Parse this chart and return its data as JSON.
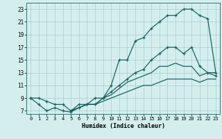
{
  "xlabel": "Humidex (Indice chaleur)",
  "bg_color": "#d4eeee",
  "grid_color": "#a8cccc",
  "line_color": "#1a6060",
  "xlim": [
    -0.5,
    23.5
  ],
  "ylim": [
    6.5,
    24.0
  ],
  "xticks": [
    0,
    1,
    2,
    3,
    4,
    5,
    6,
    7,
    8,
    9,
    10,
    11,
    12,
    13,
    14,
    15,
    16,
    17,
    18,
    19,
    20,
    21,
    22,
    23
  ],
  "yticks": [
    7,
    9,
    11,
    13,
    15,
    17,
    19,
    21,
    23
  ],
  "line1_x": [
    0,
    1,
    2,
    3,
    4,
    5,
    6,
    7,
    8,
    9,
    10,
    11,
    12,
    13,
    14,
    15,
    16,
    17,
    18,
    19,
    20,
    21,
    22,
    23
  ],
  "line1_y": [
    9,
    9,
    8.5,
    8,
    8,
    7,
    8,
    8,
    9,
    9,
    11,
    15,
    15,
    18,
    18.5,
    20,
    21,
    22,
    22,
    23,
    23,
    22,
    21.5,
    13
  ],
  "line2_x": [
    0,
    1,
    2,
    3,
    4,
    5,
    6,
    7,
    8,
    9,
    10,
    11,
    12,
    13,
    14,
    15,
    16,
    17,
    18,
    19,
    20,
    21,
    22,
    23
  ],
  "line2_y": [
    9,
    8,
    7,
    7.5,
    7,
    6.8,
    7.5,
    8,
    8,
    9,
    10,
    11,
    12,
    13,
    13.5,
    15,
    16,
    17,
    17,
    16,
    17,
    14,
    13,
    12.5
  ],
  "line3_x": [
    5,
    6,
    7,
    8,
    9,
    10,
    11,
    12,
    13,
    14,
    15,
    16,
    17,
    18,
    19,
    20,
    21,
    22,
    23
  ],
  "line3_y": [
    7,
    7.5,
    8,
    8,
    9,
    9.5,
    10.5,
    11.5,
    12,
    12.5,
    13,
    14,
    14,
    14.5,
    14,
    14,
    12.5,
    13,
    13
  ],
  "line4_x": [
    5,
    6,
    7,
    8,
    9,
    10,
    11,
    12,
    13,
    14,
    15,
    16,
    17,
    18,
    19,
    20,
    21,
    22,
    23
  ],
  "line4_y": [
    7,
    7.5,
    8,
    8,
    8.5,
    9,
    9.5,
    10,
    10.5,
    11,
    11,
    11.5,
    12,
    12,
    12,
    12,
    11.5,
    12,
    12
  ]
}
